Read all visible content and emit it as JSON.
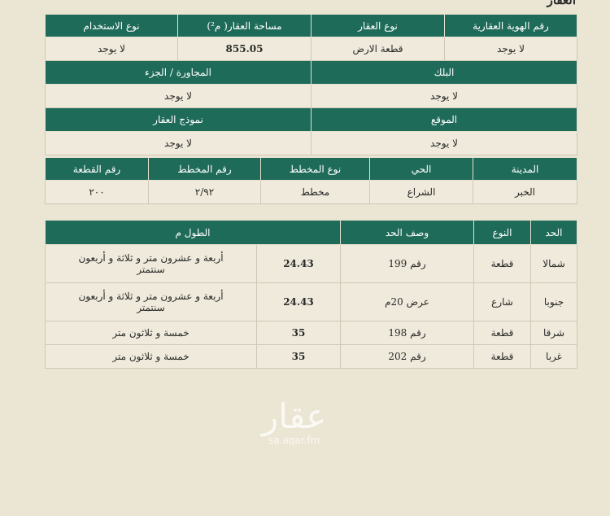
{
  "title": "العقار",
  "property": {
    "h1": [
      "رقم الهوية العقارية",
      "نوع العقار",
      "مساحة العقار( م²)",
      "نوع الاستخدام"
    ],
    "v1": [
      "لا يوجد",
      "قطعة الارض",
      "855.05",
      "لا يوجد"
    ],
    "h2": [
      "البلك",
      "المجاورة / الجزء"
    ],
    "v2": [
      "لا يوجد",
      "لا يوجد"
    ],
    "h3": [
      "الموقع",
      "نموذج العقار"
    ],
    "v3": [
      "لا يوجد",
      "لا يوجد"
    ],
    "h4": [
      "المدينة",
      "الحي",
      "نوع المخطط",
      "رقم المخطط",
      "رقم القطعة"
    ],
    "v4": [
      "الخبر",
      "الشراع",
      "مخطط",
      "٢/٩٢",
      "٢٠٠"
    ]
  },
  "boundaries": {
    "headers": [
      "الحد",
      "النوع",
      "وصف الحد",
      "الطول م"
    ],
    "rows": [
      [
        "شمالا",
        "قطعة",
        "رقم 199",
        "24.43",
        "أربعة و عشرون متر و ثلاثة و أربعون سنتمتر"
      ],
      [
        "جنوبا",
        "شارع",
        "عرض 20م",
        "24.43",
        "أربعة و عشرون متر و ثلاثة و أربعون سنتمتر"
      ],
      [
        "شرقا",
        "قطعة",
        "رقم 198",
        "35",
        "خمسة و ثلاثون متر"
      ],
      [
        "غربا",
        "قطعة",
        "رقم 202",
        "35",
        "خمسة و ثلاثون متر"
      ]
    ]
  },
  "watermark": {
    "logo": "عقار",
    "url": "sa.aqar.fm"
  },
  "colors": {
    "header": "#1f6b5a",
    "background": "#ebe5d4"
  }
}
